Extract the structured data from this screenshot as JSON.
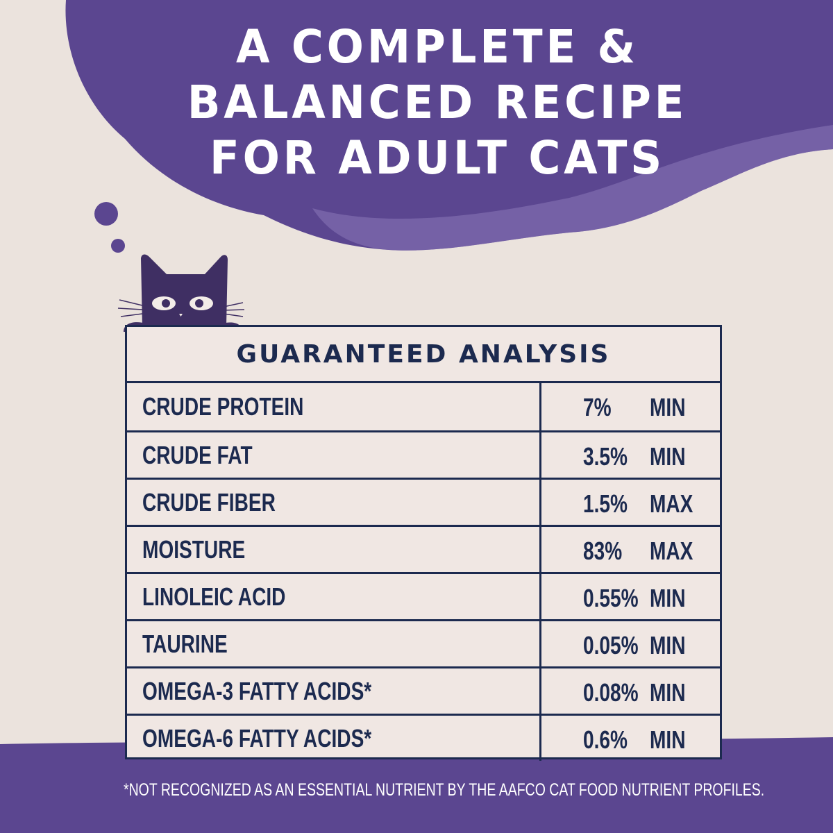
{
  "colors": {
    "purple": "#5b4690",
    "cream": "#ebe3dd",
    "navy": "#1c2a4f"
  },
  "headline": [
    "A COMPLETE &",
    "BALANCED RECIPE",
    "FOR ADULT CATS"
  ],
  "mascot": "cat-icon",
  "table": {
    "title": "GUARANTEED ANALYSIS",
    "rows": [
      {
        "nutrient": "CRUDE PROTEIN",
        "value": "7%",
        "unit": "MIN"
      },
      {
        "nutrient": "CRUDE FAT",
        "value": "3.5%",
        "unit": "MIN"
      },
      {
        "nutrient": "CRUDE FIBER",
        "value": "1.5%",
        "unit": "MAX"
      },
      {
        "nutrient": "MOISTURE",
        "value": "83%",
        "unit": "MAX"
      },
      {
        "nutrient": "LINOLEIC ACID",
        "value": "0.55%",
        "unit": "MIN"
      },
      {
        "nutrient": "TAURINE",
        "value": "0.05%",
        "unit": "MIN"
      },
      {
        "nutrient": "OMEGA-3 FATTY ACIDS*",
        "value": "0.08%",
        "unit": "MIN"
      },
      {
        "nutrient": "OMEGA-6 FATTY ACIDS*",
        "value": "0.6%",
        "unit": "MIN"
      }
    ]
  },
  "footnote": "*NOT RECOGNIZED AS AN ESSENTIAL NUTRIENT BY THE AAFCO CAT FOOD NUTRIENT PROFILES."
}
